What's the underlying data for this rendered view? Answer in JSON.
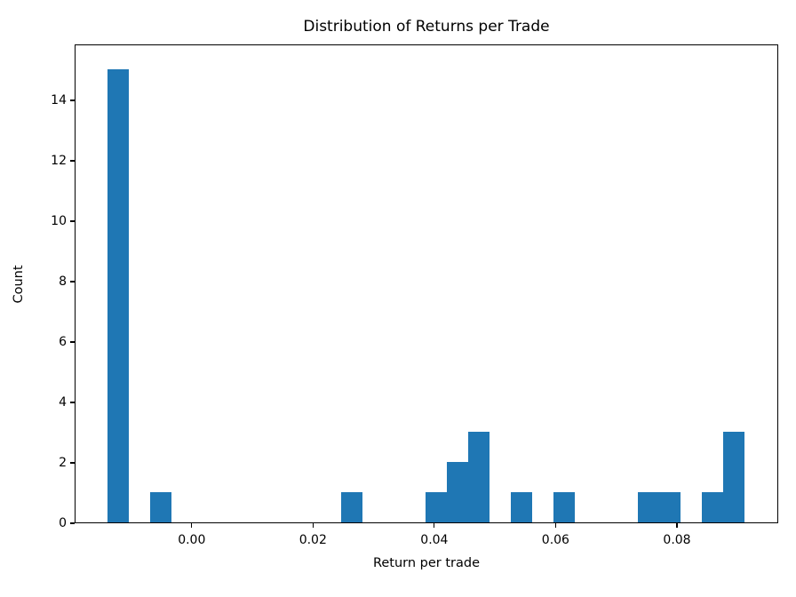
{
  "figure": {
    "background": "#ffffff",
    "text_color": "#000000"
  },
  "chart_data": {
    "type": "bar",
    "subtype": "histogram",
    "title": "Distribution of Returns per Trade",
    "xlabel": "Return per trade",
    "ylabel": "Count",
    "bar_color": "#1f77b4",
    "grid": false,
    "legend": null,
    "bins": {
      "start": -0.0139,
      "width": 0.0035,
      "count": 30,
      "end": 0.0911
    },
    "counts": [
      15,
      0,
      1,
      0,
      0,
      0,
      0,
      0,
      0,
      0,
      0,
      1,
      0,
      0,
      0,
      1,
      2,
      3,
      0,
      1,
      0,
      1,
      0,
      0,
      0,
      1,
      1,
      0,
      1,
      3
    ],
    "total_observations": 31,
    "xlim": [
      -0.0193,
      0.0967
    ],
    "ylim": [
      0,
      15.85
    ],
    "x_tick_values": [
      0.0,
      0.02,
      0.04,
      0.06,
      0.08
    ],
    "x_tick_labels": [
      "0.00",
      "0.02",
      "0.04",
      "0.06",
      "0.08"
    ],
    "y_tick_values": [
      0,
      2,
      4,
      6,
      8,
      10,
      12,
      14
    ],
    "y_tick_labels": [
      "0",
      "2",
      "4",
      "6",
      "8",
      "10",
      "12",
      "14"
    ]
  }
}
